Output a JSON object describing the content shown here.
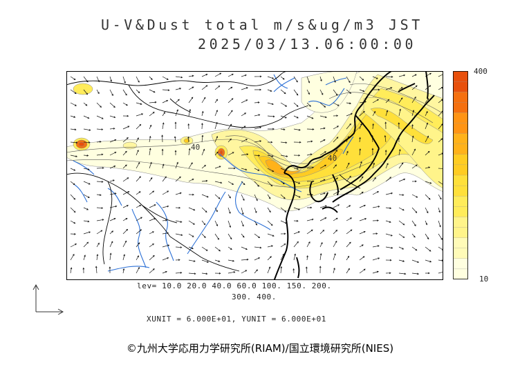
{
  "title": {
    "line1": "U-V&Dust total m/s&ug/m3 JST",
    "line2": "2025/03/13.06:00:00"
  },
  "legend": {
    "levels_line1": "lev= 10.0 20.0 40.0 60.0 100. 150. 200.",
    "levels_line2": "300. 400.",
    "units_line": "XUNIT = 6.000E+01, YUNIT = 6.000E+01",
    "scale_max": "400",
    "scale_min": "10",
    "colors": [
      "#ffffe0",
      "#fffbb8",
      "#fff48a",
      "#ffec5a",
      "#ffe03a",
      "#ffcc22",
      "#ffb21a",
      "#ff9414",
      "#f5700f",
      "#e8500c"
    ]
  },
  "map": {
    "contour_labels": [
      "40",
      "40"
    ]
  },
  "copyright": "©九州大学応用力学研究所(RIAM)/国立環境研究所(NIES)"
}
